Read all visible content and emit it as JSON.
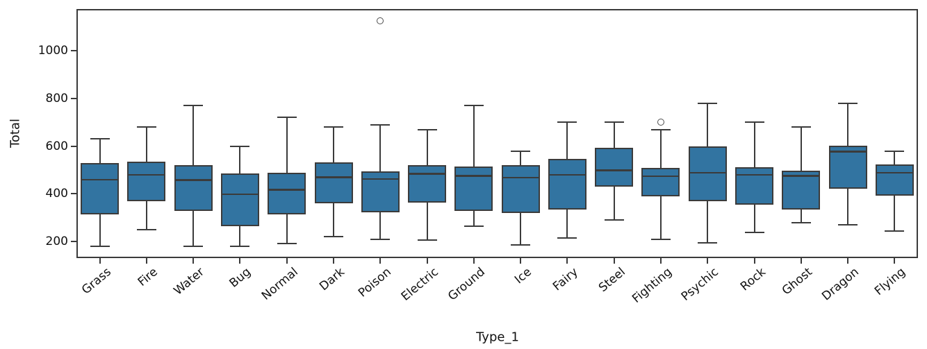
{
  "chart_data": {
    "type": "box",
    "title": "",
    "xlabel": "Type_1",
    "ylabel": "Total",
    "ylim": [
      131,
      1175
    ],
    "yticks": [
      200,
      400,
      600,
      800,
      1000
    ],
    "grid": false,
    "legend": null,
    "orientation": "vertical",
    "colors": {
      "box_fill": "#3274a1",
      "box_line": "#3b3b3b",
      "spine": "#3a3a3a",
      "text": "#111111",
      "outlier_ring": "#4d4d4d",
      "background": "#ffffff"
    },
    "categories": [
      "Grass",
      "Fire",
      "Water",
      "Bug",
      "Normal",
      "Dark",
      "Poison",
      "Electric",
      "Ground",
      "Ice",
      "Fairy",
      "Steel",
      "Fighting",
      "Psychic",
      "Rock",
      "Ghost",
      "Dragon",
      "Flying"
    ],
    "series": [
      {
        "category": "Grass",
        "whisker_low": 180,
        "q1": 315,
        "median": 460,
        "q3": 528,
        "whisker_high": 630,
        "outliers": []
      },
      {
        "category": "Fire",
        "whisker_low": 250,
        "q1": 370,
        "median": 480,
        "q3": 536,
        "whisker_high": 680,
        "outliers": []
      },
      {
        "category": "Water",
        "whisker_low": 180,
        "q1": 329,
        "median": 458,
        "q3": 520,
        "whisker_high": 770,
        "outliers": []
      },
      {
        "category": "Bug",
        "whisker_low": 180,
        "q1": 265,
        "median": 398,
        "q3": 486,
        "whisker_high": 600,
        "outliers": []
      },
      {
        "category": "Normal",
        "whisker_low": 192,
        "q1": 313,
        "median": 418,
        "q3": 490,
        "whisker_high": 720,
        "outliers": []
      },
      {
        "category": "Dark",
        "whisker_low": 221,
        "q1": 361,
        "median": 470,
        "q3": 532,
        "whisker_high": 680,
        "outliers": []
      },
      {
        "category": "Poison",
        "whisker_low": 210,
        "q1": 323,
        "median": 462,
        "q3": 495,
        "whisker_high": 690,
        "outliers": [
          1125
        ]
      },
      {
        "category": "Electric",
        "whisker_low": 207,
        "q1": 365,
        "median": 484,
        "q3": 520,
        "whisker_high": 670,
        "outliers": []
      },
      {
        "category": "Ground",
        "whisker_low": 265,
        "q1": 330,
        "median": 475,
        "q3": 515,
        "whisker_high": 770,
        "outliers": []
      },
      {
        "category": "Ice",
        "whisker_low": 185,
        "q1": 320,
        "median": 469,
        "q3": 520,
        "whisker_high": 580,
        "outliers": []
      },
      {
        "category": "Fairy",
        "whisker_low": 216,
        "q1": 334,
        "median": 480,
        "q3": 548,
        "whisker_high": 700,
        "outliers": []
      },
      {
        "category": "Steel",
        "whisker_low": 292,
        "q1": 430,
        "median": 499,
        "q3": 592,
        "whisker_high": 700,
        "outliers": []
      },
      {
        "category": "Fighting",
        "whisker_low": 210,
        "q1": 390,
        "median": 474,
        "q3": 508,
        "whisker_high": 670,
        "outliers": [
          700
        ]
      },
      {
        "category": "Psychic",
        "whisker_low": 196,
        "q1": 370,
        "median": 489,
        "q3": 600,
        "whisker_high": 780,
        "outliers": []
      },
      {
        "category": "Rock",
        "whisker_low": 239,
        "q1": 355,
        "median": 480,
        "q3": 513,
        "whisker_high": 700,
        "outliers": []
      },
      {
        "category": "Ghost",
        "whisker_low": 280,
        "q1": 335,
        "median": 476,
        "q3": 498,
        "whisker_high": 680,
        "outliers": []
      },
      {
        "category": "Dragon",
        "whisker_low": 270,
        "q1": 423,
        "median": 578,
        "q3": 601,
        "whisker_high": 780,
        "outliers": []
      },
      {
        "category": "Flying",
        "whisker_low": 245,
        "q1": 394,
        "median": 489,
        "q3": 523,
        "whisker_high": 580,
        "outliers": []
      }
    ]
  }
}
